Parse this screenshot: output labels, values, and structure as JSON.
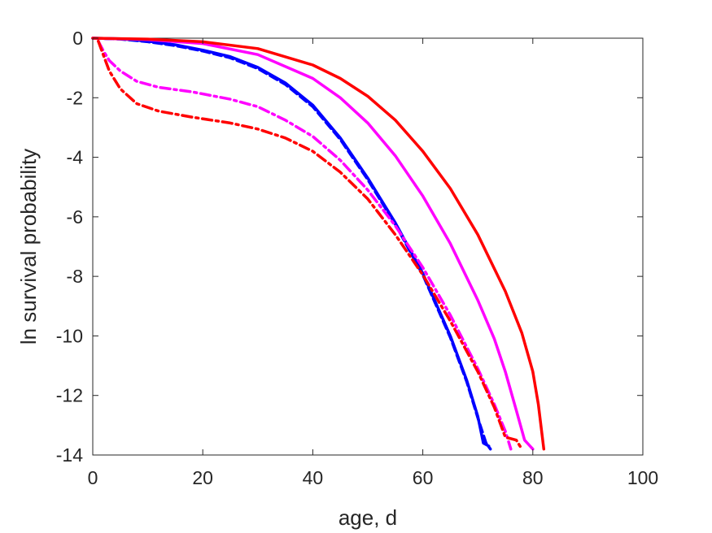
{
  "chart_data": {
    "type": "line",
    "title": "",
    "xlabel": "age, d",
    "ylabel": "ln survival probability",
    "xlim": [
      0,
      100
    ],
    "ylim": [
      -14,
      0
    ],
    "xticks": [
      0,
      20,
      40,
      60,
      80,
      100
    ],
    "yticks": [
      0,
      -2,
      -4,
      -6,
      -8,
      -10,
      -12,
      -14
    ],
    "grid": false,
    "legend": "none",
    "series": [
      {
        "color": "#0000ff",
        "style": "solid",
        "points": [
          [
            0,
            0
          ],
          [
            5,
            -0.02
          ],
          [
            10,
            -0.1
          ],
          [
            15,
            -0.22
          ],
          [
            20,
            -0.4
          ],
          [
            25,
            -0.62
          ],
          [
            30,
            -0.98
          ],
          [
            35,
            -1.5
          ],
          [
            40,
            -2.25
          ],
          [
            45,
            -3.35
          ],
          [
            50,
            -4.7
          ],
          [
            55,
            -6.2
          ],
          [
            60,
            -7.9
          ],
          [
            65,
            -10.0
          ],
          [
            68,
            -11.5
          ],
          [
            70,
            -12.7
          ],
          [
            71,
            -13.6
          ],
          [
            72,
            -13.7
          ]
        ]
      },
      {
        "color": "#0000ff",
        "style": "dashed",
        "points": [
          [
            0,
            0
          ],
          [
            5,
            -0.03
          ],
          [
            10,
            -0.12
          ],
          [
            15,
            -0.25
          ],
          [
            20,
            -0.43
          ],
          [
            25,
            -0.66
          ],
          [
            30,
            -1.02
          ],
          [
            35,
            -1.55
          ],
          [
            40,
            -2.3
          ],
          [
            45,
            -3.4
          ],
          [
            50,
            -4.75
          ],
          [
            55,
            -6.25
          ],
          [
            60,
            -7.95
          ],
          [
            65,
            -10.05
          ],
          [
            68,
            -11.55
          ],
          [
            70,
            -12.75
          ],
          [
            71.5,
            -13.6
          ],
          [
            72.3,
            -13.8
          ]
        ]
      },
      {
        "color": "#ff00ff",
        "style": "solid",
        "points": [
          [
            0,
            0
          ],
          [
            10,
            -0.05
          ],
          [
            20,
            -0.18
          ],
          [
            30,
            -0.55
          ],
          [
            40,
            -1.35
          ],
          [
            45,
            -2.0
          ],
          [
            50,
            -2.85
          ],
          [
            55,
            -3.95
          ],
          [
            60,
            -5.3
          ],
          [
            65,
            -6.9
          ],
          [
            70,
            -8.8
          ],
          [
            73,
            -10.1
          ],
          [
            75,
            -11.2
          ],
          [
            77,
            -12.5
          ],
          [
            78.5,
            -13.5
          ],
          [
            79.5,
            -13.7
          ],
          [
            80,
            -13.8
          ]
        ]
      },
      {
        "color": "#ff00ff",
        "style": "dashdot",
        "points": [
          [
            1,
            -0.1
          ],
          [
            2,
            -0.45
          ],
          [
            3,
            -0.75
          ],
          [
            5,
            -1.1
          ],
          [
            8,
            -1.45
          ],
          [
            12,
            -1.65
          ],
          [
            18,
            -1.8
          ],
          [
            25,
            -2.05
          ],
          [
            30,
            -2.3
          ],
          [
            35,
            -2.75
          ],
          [
            40,
            -3.3
          ],
          [
            45,
            -4.1
          ],
          [
            50,
            -5.1
          ],
          [
            55,
            -6.3
          ],
          [
            60,
            -7.7
          ],
          [
            65,
            -9.3
          ],
          [
            70,
            -11.1
          ],
          [
            73,
            -12.3
          ],
          [
            75,
            -13.2
          ],
          [
            76,
            -13.8
          ]
        ]
      },
      {
        "color": "#ff0000",
        "style": "solid",
        "points": [
          [
            0,
            0
          ],
          [
            10,
            -0.03
          ],
          [
            20,
            -0.12
          ],
          [
            30,
            -0.35
          ],
          [
            40,
            -0.9
          ],
          [
            45,
            -1.35
          ],
          [
            50,
            -1.95
          ],
          [
            55,
            -2.75
          ],
          [
            60,
            -3.8
          ],
          [
            65,
            -5.05
          ],
          [
            70,
            -6.6
          ],
          [
            75,
            -8.5
          ],
          [
            78,
            -9.9
          ],
          [
            80,
            -11.2
          ],
          [
            81,
            -12.3
          ],
          [
            82,
            -13.8
          ]
        ]
      },
      {
        "color": "#ff0000",
        "style": "dashdot",
        "points": [
          [
            1,
            -0.1
          ],
          [
            2,
            -0.6
          ],
          [
            3,
            -1.1
          ],
          [
            5,
            -1.7
          ],
          [
            8,
            -2.2
          ],
          [
            12,
            -2.45
          ],
          [
            18,
            -2.65
          ],
          [
            25,
            -2.85
          ],
          [
            30,
            -3.05
          ],
          [
            35,
            -3.35
          ],
          [
            40,
            -3.8
          ],
          [
            45,
            -4.5
          ],
          [
            50,
            -5.4
          ],
          [
            55,
            -6.6
          ],
          [
            60,
            -7.95
          ],
          [
            65,
            -9.5
          ],
          [
            70,
            -11.2
          ],
          [
            73,
            -12.4
          ],
          [
            75,
            -13.4
          ],
          [
            77,
            -13.5
          ],
          [
            78,
            -13.8
          ]
        ]
      }
    ]
  }
}
